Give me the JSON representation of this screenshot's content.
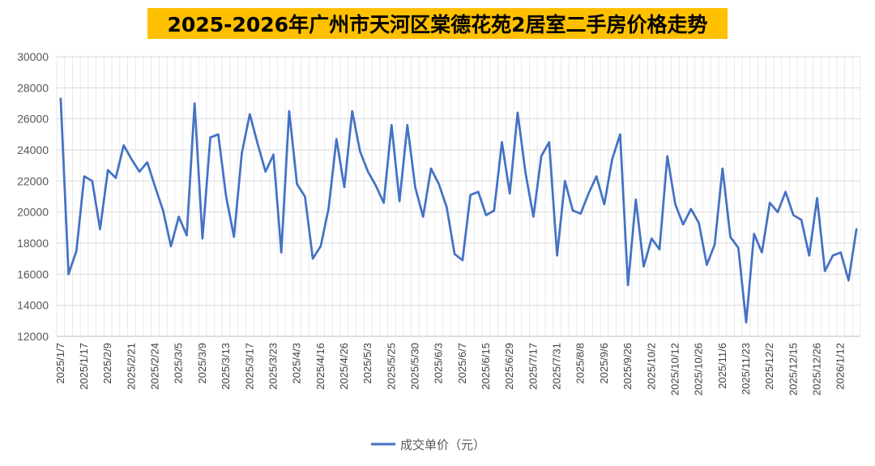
{
  "chart_data": {
    "type": "line",
    "title": "2025-2026年广州市天河区棠德花苑2居室二手房价格走势",
    "xlabel": "",
    "ylabel": "",
    "ylim": [
      12000,
      30000
    ],
    "yticks": [
      12000,
      14000,
      16000,
      18000,
      20000,
      22000,
      24000,
      26000,
      28000,
      30000
    ],
    "xtick_labels": [
      "2025/1/7",
      "2025/1/17",
      "2025/2/9",
      "2025/2/21",
      "2025/2/24",
      "2025/3/5",
      "2025/3/9",
      "2025/3/13",
      "2025/3/17",
      "2025/3/23",
      "2025/4/3",
      "2025/4/16",
      "2025/4/26",
      "2025/5/3",
      "2025/5/25",
      "2025/5/30",
      "2025/6/3",
      "2025/6/7",
      "2025/6/15",
      "2025/6/29",
      "2025/7/17",
      "2025/7/31",
      "2025/8/8",
      "2025/9/6",
      "2025/9/26",
      "2025/10/2",
      "2025/10/12",
      "2025/10/26",
      "2025/11/6",
      "2025/11/23",
      "2025/12/2",
      "2025/12/15",
      "2025/12/26",
      "2026/1/12"
    ],
    "tick_every": 3,
    "grid": true,
    "legend_position": "bottom",
    "line_color": "#4472C4",
    "series": [
      {
        "name": "成交单价（元）",
        "values": [
          27300,
          16000,
          17500,
          22300,
          22000,
          18900,
          22700,
          22200,
          24300,
          23400,
          22600,
          23200,
          21600,
          20100,
          17800,
          19700,
          18500,
          27000,
          18300,
          24800,
          25000,
          21000,
          18400,
          23800,
          26300,
          24400,
          22600,
          23700,
          17400,
          26500,
          21800,
          21000,
          17000,
          17800,
          20200,
          24700,
          21600,
          26500,
          23900,
          22600,
          21700,
          20600,
          25600,
          20700,
          25600,
          21600,
          19700,
          22800,
          21800,
          20300,
          17300,
          16900,
          21100,
          21300,
          19800,
          20100,
          24500,
          21200,
          26400,
          22500,
          19700,
          23600,
          24500,
          17200,
          22000,
          20100,
          19900,
          21200,
          22300,
          20500,
          23400,
          25000,
          15300,
          20800,
          16500,
          18300,
          17600,
          23600,
          20500,
          19200,
          20200,
          19300,
          16600,
          17900,
          22800,
          18400,
          17700,
          12900,
          18600,
          17400,
          20600,
          20000,
          21300,
          19800,
          19500,
          17200,
          20900,
          16200,
          17200,
          17400,
          15600,
          18900
        ]
      }
    ]
  }
}
